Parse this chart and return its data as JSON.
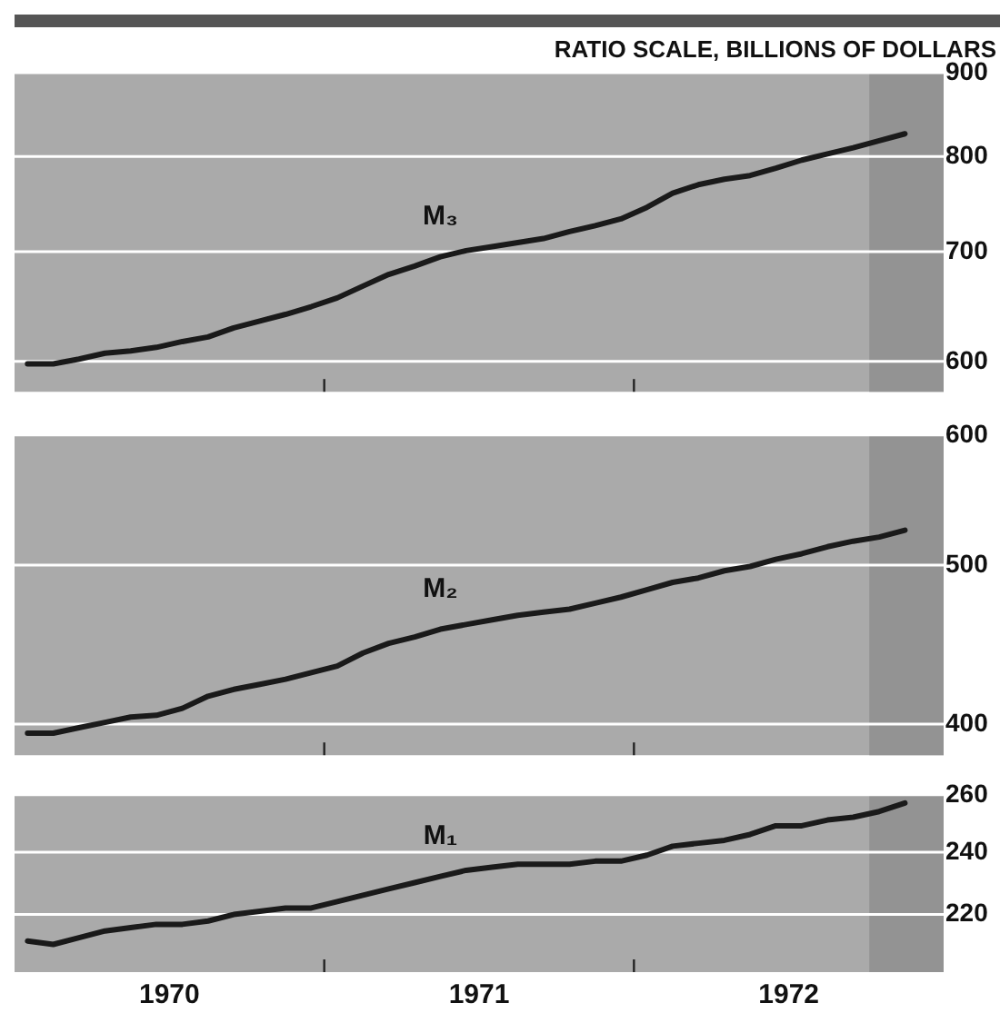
{
  "chart_data": [
    {
      "type": "line",
      "ylabel": "RATIO SCALE, BILLIONS OF DOLLARS",
      "log": "y",
      "grid": "y",
      "tick_labels": "y",
      "marker": "none",
      "line_style": "solid",
      "x": [
        1970.042,
        1970.125,
        1970.208,
        1970.292,
        1970.375,
        1970.458,
        1970.542,
        1970.625,
        1970.708,
        1970.792,
        1970.875,
        1970.958,
        1971.042,
        1971.125,
        1971.208,
        1971.292,
        1971.375,
        1971.458,
        1971.542,
        1971.625,
        1971.708,
        1971.792,
        1971.875,
        1971.958,
        1972.042,
        1972.125,
        1972.208,
        1972.292,
        1972.375,
        1972.458,
        1972.542,
        1972.625,
        1972.708,
        1972.792,
        1972.875
      ],
      "series": [
        {
          "name": "M₃",
          "color": "#1a1a1a",
          "values": [
            598,
            598,
            602,
            607,
            609,
            612,
            617,
            621,
            629,
            635,
            641,
            648,
            656,
            667,
            678,
            686,
            695,
            701,
            705,
            709,
            713,
            720,
            726,
            733,
            745,
            760,
            769,
            775,
            779,
            787,
            796,
            803,
            810,
            818,
            826
          ]
        }
      ],
      "xlim": [
        1970,
        1973
      ],
      "xticks": [
        {
          "value": 1971,
          "label": null
        },
        {
          "value": 1972,
          "label": null
        }
      ],
      "ylim": [
        575,
        900
      ],
      "yticks": [
        600,
        700,
        800,
        900
      ],
      "bands": [
        {
          "axis": "x",
          "from": 1972.76,
          "to": 1973,
          "color": "#939393"
        }
      ]
    },
    {
      "type": "line",
      "log": "y",
      "grid": "y",
      "tick_labels": "y",
      "marker": "none",
      "line_style": "solid",
      "x": [
        1970.042,
        1970.125,
        1970.208,
        1970.292,
        1970.375,
        1970.458,
        1970.542,
        1970.625,
        1970.708,
        1970.792,
        1970.875,
        1970.958,
        1971.042,
        1971.125,
        1971.208,
        1971.292,
        1971.375,
        1971.458,
        1971.542,
        1971.625,
        1971.708,
        1971.792,
        1971.875,
        1971.958,
        1972.042,
        1972.125,
        1972.208,
        1972.292,
        1972.375,
        1972.458,
        1972.542,
        1972.625,
        1972.708,
        1972.792,
        1972.875
      ],
      "series": [
        {
          "name": "M₂",
          "color": "#1a1a1a",
          "values": [
            395,
            395,
            398,
            401,
            404,
            405,
            409,
            416,
            420,
            423,
            426,
            430,
            434,
            442,
            448,
            452,
            457,
            460,
            463,
            466,
            468,
            470,
            474,
            478,
            483,
            488,
            491,
            496,
            499,
            504,
            508,
            513,
            517,
            520,
            525
          ]
        }
      ],
      "xlim": [
        1970,
        1973
      ],
      "xticks": [
        {
          "value": 1971,
          "label": null
        },
        {
          "value": 1972,
          "label": null
        }
      ],
      "ylim": [
        383,
        600
      ],
      "yticks": [
        400,
        500,
        600
      ],
      "bands": [
        {
          "axis": "x",
          "from": 1972.76,
          "to": 1973,
          "color": "#939393"
        }
      ]
    },
    {
      "type": "line",
      "log": "y",
      "grid": "y",
      "marker": "none",
      "line_style": "solid",
      "x": [
        1970.042,
        1970.125,
        1970.208,
        1970.292,
        1970.375,
        1970.458,
        1970.542,
        1970.625,
        1970.708,
        1970.792,
        1970.875,
        1970.958,
        1971.042,
        1971.125,
        1971.208,
        1971.292,
        1971.375,
        1971.458,
        1971.542,
        1971.625,
        1971.708,
        1971.792,
        1971.875,
        1971.958,
        1972.042,
        1972.125,
        1972.208,
        1972.292,
        1972.375,
        1972.458,
        1972.542,
        1972.625,
        1972.708,
        1972.792,
        1972.875
      ],
      "series": [
        {
          "name": "M₁",
          "color": "#1a1a1a",
          "values": [
            212,
            211,
            213,
            215,
            216,
            217,
            217,
            218,
            220,
            221,
            222,
            222,
            224,
            226,
            228,
            230,
            232,
            234,
            235,
            236,
            236,
            236,
            237,
            237,
            239,
            242,
            243,
            244,
            246,
            249,
            249,
            251,
            252,
            254,
            257
          ]
        }
      ],
      "xlim": [
        1970,
        1973
      ],
      "xticks": [
        {
          "value": 1970.5,
          "label": "1970"
        },
        {
          "value": 1971,
          "label": null
        },
        {
          "value": 1971.5,
          "label": "1971"
        },
        {
          "value": 1972,
          "label": null
        },
        {
          "value": 1972.5,
          "label": "1972"
        }
      ],
      "ylim": [
        203,
        260
      ],
      "yticks": [
        220,
        240,
        260
      ],
      "bands": [
        {
          "axis": "x",
          "from": 1972.76,
          "to": 1973,
          "color": "#939393"
        }
      ]
    }
  ]
}
